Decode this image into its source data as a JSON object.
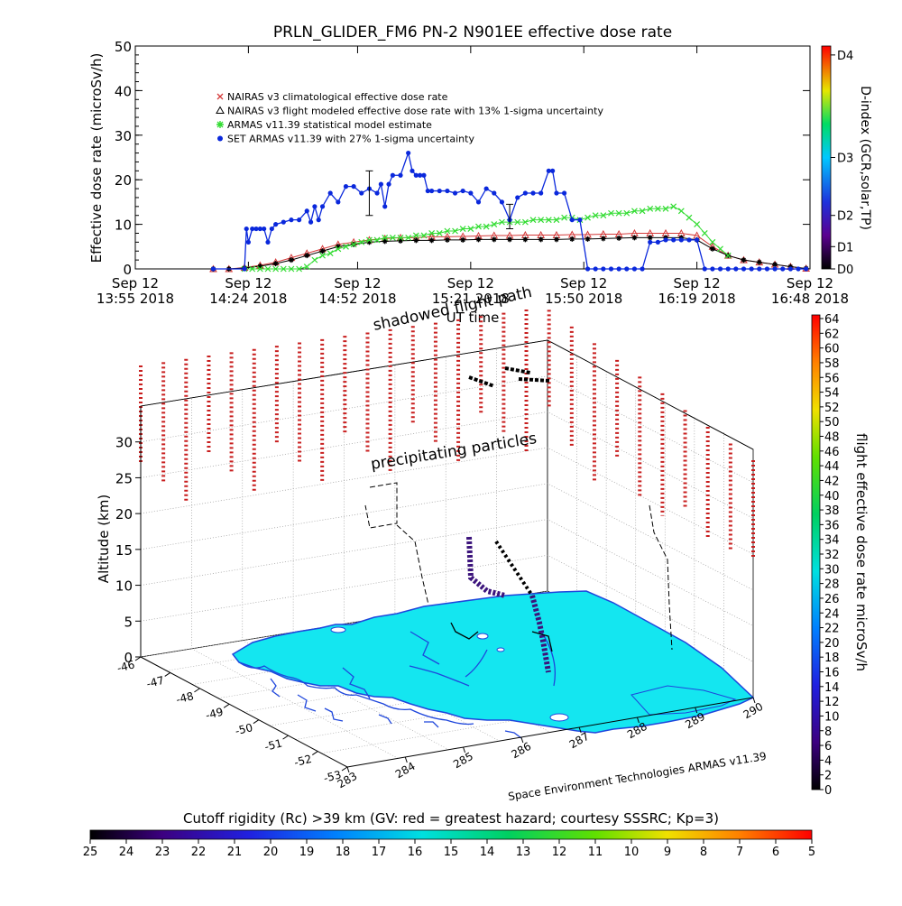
{
  "chart_data": [
    {
      "type": "line",
      "title": "PRLN_GLIDER_FM6 PN-2 N901EE effective dose rate",
      "ylabel": "Effective dose rate (microSv/h)",
      "xlabel": "UT time",
      "ylim": [
        0,
        50
      ],
      "yticks": [
        "0",
        "10",
        "20",
        "30",
        "40",
        "50"
      ],
      "xlim_minutes": [
        0,
        173
      ],
      "xticks": [
        {
          "minute": 0,
          "line1": "Sep 12",
          "line2": "13:55 2018"
        },
        {
          "minute": 29,
          "line1": "Sep 12",
          "line2": "14:24 2018"
        },
        {
          "minute": 57,
          "line1": "Sep 12",
          "line2": "14:52 2018"
        },
        {
          "minute": 86,
          "line1": "Sep 12",
          "line2": "15:21 2018"
        },
        {
          "minute": 115,
          "line1": "Sep 12",
          "line2": "15:50 2018"
        },
        {
          "minute": 144,
          "line1": "Sep 12",
          "line2": "16:19 2018"
        },
        {
          "minute": 173,
          "line1": "Sep 12",
          "line2": "16:48 2018"
        }
      ],
      "right_axis": {
        "label": "D-index (GCR,solar,TP)",
        "ticks": [
          "D0",
          "D1",
          "D2",
          "D3",
          "D4"
        ],
        "tick_values": [
          0,
          5,
          12,
          25,
          48
        ]
      },
      "legend": {
        "placement": "upper-left",
        "entries": [
          {
            "name": "NAIRAS v3 climatological effective dose rate",
            "color": "#d43a3a",
            "marker": "x"
          },
          {
            "name": "NAIRAS v3 flight modeled effective dose rate with 13% 1-sigma uncertainty",
            "color": "#000000",
            "marker": "triangle"
          },
          {
            "name": "ARMAS v11.39 statistical model estimate",
            "color": "#32dc32",
            "marker": "star"
          },
          {
            "name": "SET ARMAS v11.39 with 27% 1-sigma uncertainty",
            "color": "#0a28dc",
            "marker": "dot"
          }
        ]
      },
      "series": [
        {
          "name": "SET ARMAS v11.39 with 27% 1-sigma uncertainty",
          "color": "#0a28dc",
          "x": [
            20,
            28,
            28.5,
            29,
            30,
            31,
            32,
            33,
            34,
            35,
            36,
            38,
            40,
            42,
            44,
            45,
            46,
            47,
            48,
            50,
            52,
            54,
            56,
            58,
            60,
            62,
            63,
            64,
            65,
            66,
            68,
            70,
            71,
            72,
            73,
            74,
            75,
            76,
            78,
            80,
            82,
            84,
            86,
            88,
            90,
            92,
            94,
            96,
            98,
            100,
            102,
            104,
            106,
            107,
            108,
            110,
            112,
            114,
            116,
            118,
            120,
            122,
            124,
            126,
            128,
            130,
            132,
            134,
            136,
            138,
            140,
            142,
            144,
            146,
            148,
            150,
            152,
            154,
            156,
            158,
            160,
            162,
            164,
            166,
            168,
            170,
            172
          ],
          "y": [
            0,
            0,
            9,
            6,
            9,
            9,
            9,
            9,
            6,
            9,
            10,
            10.5,
            11,
            11,
            13,
            10.5,
            14,
            11,
            14,
            17,
            15,
            18.5,
            18.5,
            17,
            18,
            17,
            19,
            14,
            19,
            21,
            21,
            26,
            22,
            21,
            21,
            21,
            17.5,
            17.5,
            17.5,
            17.5,
            17,
            17.5,
            17,
            15,
            18,
            17,
            15,
            11,
            16,
            17,
            17,
            17,
            22,
            22,
            17,
            17,
            11,
            11,
            0,
            0,
            0,
            0,
            0,
            0,
            0,
            0,
            6,
            6,
            6.5,
            6.5,
            6.5,
            6.5,
            6.5,
            0,
            0,
            0,
            0,
            0,
            0,
            0,
            0,
            0,
            0,
            0,
            0,
            0,
            0
          ]
        },
        {
          "name": "ARMAS v11.39 statistical model estimate",
          "color": "#32dc32",
          "x": [
            28,
            30,
            32,
            34,
            36,
            38,
            40,
            42,
            44,
            46,
            48,
            50,
            52,
            54,
            56,
            58,
            60,
            62,
            64,
            66,
            68,
            70,
            72,
            74,
            76,
            78,
            80,
            82,
            84,
            86,
            88,
            90,
            92,
            94,
            96,
            98,
            100,
            102,
            104,
            106,
            108,
            110,
            112,
            114,
            116,
            118,
            120,
            122,
            124,
            126,
            128,
            130,
            132,
            134,
            136,
            138,
            140,
            142,
            144,
            146,
            148,
            150,
            152
          ],
          "y": [
            0,
            0,
            0,
            0,
            0,
            0,
            0,
            0,
            0.5,
            2,
            3,
            3.5,
            4.5,
            5,
            5.5,
            6,
            6.5,
            6.5,
            7,
            7,
            7,
            7,
            7.5,
            7.5,
            8,
            8,
            8.5,
            8.5,
            9,
            9,
            9.5,
            9.5,
            10,
            10.5,
            10.5,
            10.5,
            10.5,
            11,
            11,
            11,
            11,
            11.5,
            11.5,
            11,
            11.5,
            12,
            12,
            12.5,
            12.5,
            12.5,
            13,
            13,
            13.5,
            13.5,
            13.5,
            14,
            13,
            11.5,
            10,
            8,
            6,
            4.5,
            3
          ]
        },
        {
          "name": "NAIRAS v3 climatological effective dose rate",
          "color": "#d43a3a",
          "x": [
            20,
            24,
            28,
            32,
            36,
            40,
            44,
            48,
            52,
            56,
            60,
            64,
            68,
            72,
            76,
            80,
            84,
            88,
            92,
            96,
            100,
            104,
            108,
            112,
            116,
            120,
            124,
            128,
            132,
            136,
            140,
            144,
            148,
            152,
            156,
            160,
            164,
            168,
            172
          ],
          "y": [
            0,
            0,
            0.3,
            0.8,
            1.5,
            2.5,
            3.5,
            4.5,
            5.5,
            6,
            6.5,
            6.8,
            7,
            7,
            7.2,
            7.2,
            7.3,
            7.4,
            7.5,
            7.5,
            7.6,
            7.6,
            7.6,
            7.7,
            7.7,
            7.8,
            7.8,
            8,
            8,
            8,
            8,
            7.5,
            5,
            3,
            2,
            1.5,
            1,
            0.5,
            0.1
          ]
        },
        {
          "name": "NAIRAS v3 flight modeled effective dose rate with 13% 1-sigma uncertainty",
          "color": "#000000",
          "x": [
            20,
            24,
            28,
            32,
            36,
            40,
            44,
            48,
            52,
            56,
            60,
            64,
            68,
            72,
            76,
            80,
            84,
            88,
            92,
            96,
            100,
            104,
            108,
            112,
            116,
            120,
            124,
            128,
            132,
            136,
            140,
            144,
            148,
            152,
            156,
            160,
            164,
            168,
            172
          ],
          "y": [
            0,
            0,
            0.2,
            0.6,
            1.2,
            2,
            3,
            4,
            5,
            5.5,
            6,
            6.2,
            6.3,
            6.4,
            6.4,
            6.5,
            6.5,
            6.6,
            6.6,
            6.6,
            6.6,
            6.6,
            6.6,
            6.7,
            6.7,
            6.8,
            6.9,
            7,
            7,
            7,
            7,
            6.5,
            4.5,
            3,
            2,
            1.5,
            1,
            0.5,
            0.1
          ]
        }
      ],
      "error_bars": [
        {
          "minute": 60,
          "low": 12,
          "high": 22
        },
        {
          "minute": 96,
          "low": 9,
          "high": 14.5
        }
      ]
    },
    {
      "type": "scatter",
      "zlabel": "Altitude (km)",
      "zticks": [
        "0",
        "5",
        "10",
        "15",
        "20",
        "25",
        "30"
      ],
      "lat_ticks": [
        "-46",
        "-47",
        "-48",
        "-49",
        "-50",
        "-51",
        "-52",
        "-53"
      ],
      "lon_ticks": [
        "283",
        "284",
        "285",
        "286",
        "287",
        "288",
        "289",
        "290"
      ],
      "annotations": [
        "shadowed flight path",
        "precipitating particles"
      ],
      "credit": "Space Environment Technologies ARMAS v11.39",
      "right_colorbar": {
        "label": "flight effective dose rate microSv/h",
        "ticks": [
          "0",
          "2",
          "4",
          "6",
          "8",
          "10",
          "12",
          "14",
          "16",
          "18",
          "20",
          "22",
          "24",
          "26",
          "28",
          "30",
          "32",
          "34",
          "36",
          "38",
          "40",
          "42",
          "44",
          "46",
          "48",
          "50",
          "52",
          "54",
          "56",
          "58",
          "60",
          "62",
          "64"
        ]
      },
      "bottom_colorbar": {
        "label": "Cutoff rigidity (Rc) >39 km (GV: red = greatest hazard; courtesy SSSRC; Kp=3)",
        "ticks": [
          "25",
          "24",
          "23",
          "22",
          "21",
          "20",
          "19",
          "18",
          "17",
          "16",
          "15",
          "14",
          "13",
          "12",
          "11",
          "10",
          "9",
          "8",
          "7",
          "6",
          "5"
        ]
      },
      "colors": {
        "land": "#14e6f0",
        "coast": "#1e46dc",
        "sky_marks": "#c81e1e",
        "flight": "#3c147c"
      }
    }
  ]
}
